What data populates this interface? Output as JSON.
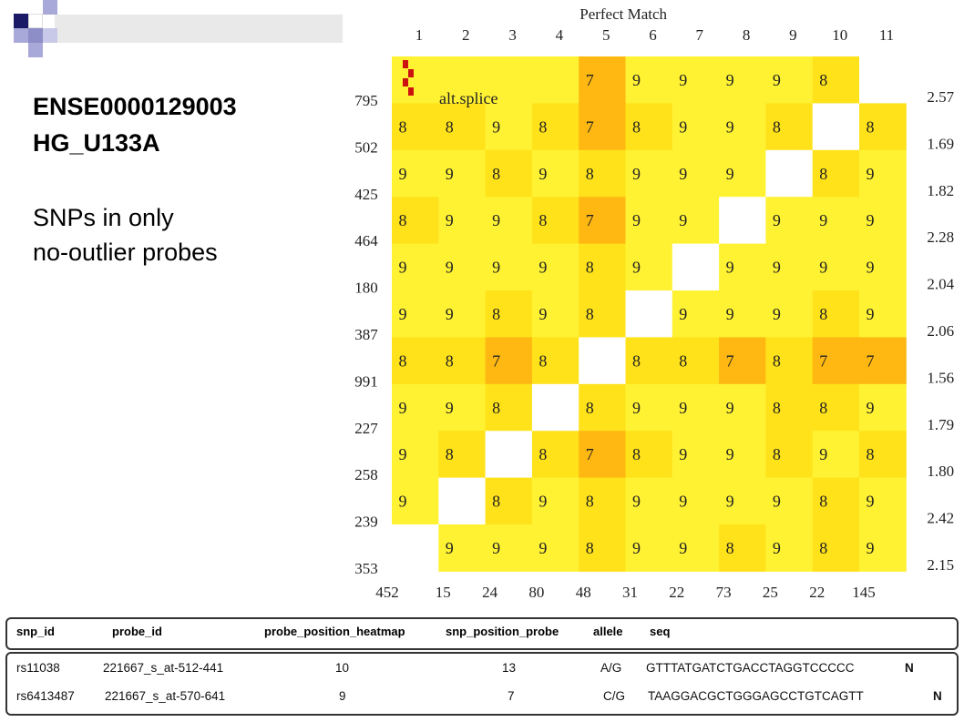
{
  "title": "ENSE0000129003",
  "subtitle": "HG_U133A",
  "note_line1": "SNPs in only",
  "note_line2": "no-outlier probes",
  "chart_data": {
    "type": "heatmap",
    "title": "Perfect Match",
    "columns": [
      "1",
      "2",
      "3",
      "4",
      "5",
      "6",
      "7",
      "8",
      "9",
      "10",
      "11"
    ],
    "row_labels": [
      "795",
      "502",
      "425",
      "464",
      "180",
      "387",
      "991",
      "227",
      "258",
      "239",
      "353"
    ],
    "right_labels": [
      "2.57",
      "1.69",
      "1.82",
      "2.28",
      "2.04",
      "2.06",
      "1.56",
      "1.79",
      "1.80",
      "2.42",
      "2.15"
    ],
    "bottom_labels": [
      "452",
      "15",
      "24",
      "80",
      "48",
      "31",
      "22",
      "73",
      "25",
      "22",
      "145"
    ],
    "bottom_label_highlight": [
      false,
      true,
      true,
      false,
      false,
      false,
      true,
      false,
      false,
      true,
      false
    ],
    "annotation": "alt.splice",
    "cells": [
      [
        "",
        "",
        "",
        "",
        "7",
        "9",
        "9",
        "9",
        "9",
        "8",
        ""
      ],
      [
        "8",
        "8",
        "9",
        "8",
        "7",
        "8",
        "9",
        "9",
        "8",
        "",
        "8"
      ],
      [
        "9",
        "9",
        "8",
        "9",
        "8",
        "9",
        "9",
        "9",
        "",
        "8",
        "9"
      ],
      [
        "8",
        "9",
        "9",
        "8",
        "7",
        "9",
        "9",
        "",
        "9",
        "9",
        "9"
      ],
      [
        "9",
        "9",
        "9",
        "9",
        "8",
        "9",
        "",
        "9",
        "9",
        "9",
        "9"
      ],
      [
        "9",
        "9",
        "8",
        "9",
        "8",
        "",
        "9",
        "9",
        "9",
        "8",
        "9"
      ],
      [
        "8",
        "8",
        "7",
        "8",
        "",
        "8",
        "8",
        "7",
        "8",
        "7",
        "7"
      ],
      [
        "9",
        "9",
        "8",
        "",
        "8",
        "9",
        "9",
        "9",
        "8",
        "8",
        "9"
      ],
      [
        "9",
        "8",
        "",
        "8",
        "7",
        "8",
        "9",
        "9",
        "8",
        "9",
        "8"
      ],
      [
        "9",
        "",
        "8",
        "9",
        "8",
        "9",
        "9",
        "9",
        "9",
        "8",
        "9"
      ],
      [
        "",
        "9",
        "9",
        "9",
        "8",
        "9",
        "9",
        "8",
        "9",
        "8",
        "9"
      ]
    ],
    "colors": {
      "diagonal": "#ffffff",
      "level9": "#fff233",
      "level8": "#ffe21a",
      "level7": "#ffb812",
      "highlight_label": "#cc2222",
      "marker": "#cc1111"
    }
  },
  "table": {
    "headers": [
      "snp_id",
      "probe_id",
      "probe_position_heatmap",
      "snp_position_probe",
      "allele",
      "seq"
    ],
    "rows": [
      {
        "snp_id": "rs11038",
        "probe_id": "221667_s_at-512-441",
        "heatmap": "10",
        "probe": "13",
        "allele": "A/G",
        "seq": "GTTTATGATCTGACCTAGGTCCCCC",
        "flag": "N"
      },
      {
        "snp_id": "rs6413487",
        "probe_id": "221667_s_at-570-641",
        "heatmap": "9",
        "probe": "7",
        "allele": "C/G",
        "seq": "TAAGGACGCTGGGAGCCTGTCAGTT",
        "flag": "N"
      }
    ]
  }
}
